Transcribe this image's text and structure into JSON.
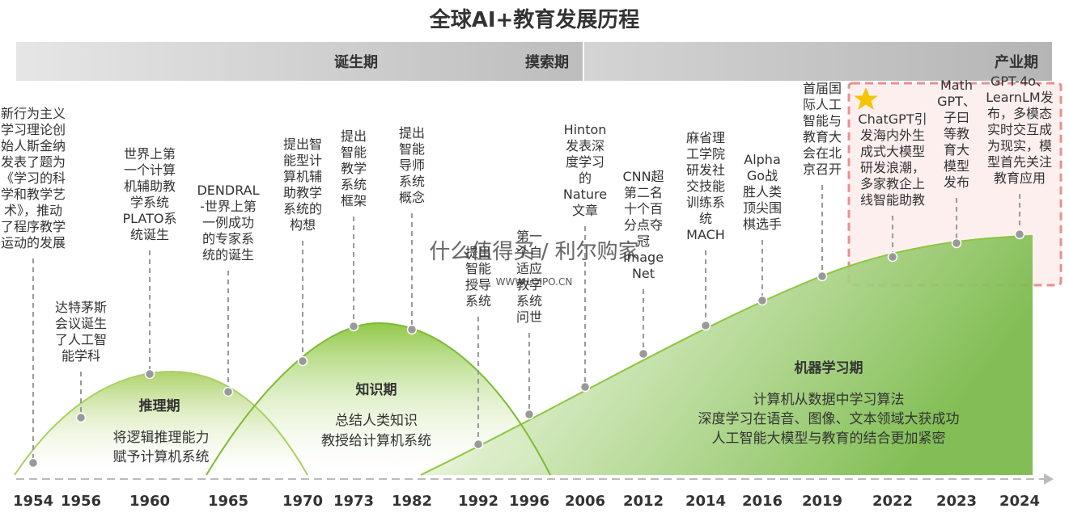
{
  "title": "全球AI+教育发展历程",
  "chart_data": {
    "type": "area",
    "title": "全球AI+教育发展历程",
    "phase_bars": [
      {
        "label": "诞生期"
      },
      {
        "label": "摸索期"
      },
      {
        "label": "产业期"
      }
    ],
    "x": [
      "1954",
      "1956",
      "1960",
      "1965",
      "1970",
      "1973",
      "1982",
      "1992",
      "1996",
      "2006",
      "2012",
      "2014",
      "2016",
      "2019",
      "2022",
      "2023",
      "2024"
    ],
    "areas": [
      {
        "name": "推理期",
        "desc": [
          "将逻辑推理能力",
          "赋予计算机系统"
        ]
      },
      {
        "name": "知识期",
        "desc": [
          "总结人类知识",
          "教授给计算机系统"
        ]
      },
      {
        "name": "机器学习期",
        "desc": [
          "计算机从数据中学习算法",
          "深度学习在语音、图像、文本领域大获成功",
          "人工智能大模型与教育的结合更加紧密"
        ]
      }
    ],
    "events": [
      {
        "year": "1954",
        "lines": [
          "新行为主义",
          "学习理论创",
          "始人斯金纳",
          "发表了题为",
          "《学习的科",
          "学和教学艺",
          "术》，推动",
          "了程序教学",
          "运动的发展"
        ]
      },
      {
        "year": "1956",
        "lines": [
          "达特茅斯",
          "会议诞生",
          "了人工智",
          "能学科"
        ]
      },
      {
        "year": "1960",
        "lines": [
          "世界上第",
          "一个计算",
          "机辅助教",
          "学系统",
          "PLATO系",
          "统诞生"
        ]
      },
      {
        "year": "1965",
        "lines": [
          "DENDRAL",
          "-世界上第",
          "一例成功",
          "的专家系",
          "统的诞生"
        ]
      },
      {
        "year": "1970",
        "lines": [
          "提出智",
          "能型计",
          "算机辅",
          "助教学",
          "系统的",
          "构想"
        ]
      },
      {
        "year": "1973",
        "lines": [
          "提出",
          "智能",
          "教学",
          "系统",
          "框架"
        ]
      },
      {
        "year": "1982",
        "lines": [
          "提出",
          "智能",
          "导师",
          "系统",
          "概念"
        ]
      },
      {
        "year": "1992",
        "lines": [
          "提出",
          "智能",
          "授导",
          "系统"
        ]
      },
      {
        "year": "1996",
        "lines": [
          "第一",
          "个自",
          "适应",
          "教学",
          "系统",
          "问世"
        ]
      },
      {
        "year": "2006",
        "lines": [
          "Hinton",
          "发表深",
          "度学习",
          "的",
          "Nature",
          "文章"
        ]
      },
      {
        "year": "2012",
        "lines": [
          "CNN超",
          "第二名",
          "十个百",
          "分点夺",
          "冠",
          "Image",
          "Net"
        ]
      },
      {
        "year": "2014",
        "lines": [
          "麻省理",
          "工学院",
          "研发社",
          "交技能",
          "训练系",
          "统",
          "MACH"
        ]
      },
      {
        "year": "2016",
        "lines": [
          "Alpha",
          "Go战",
          "胜人类",
          "顶尖围",
          "棋选手"
        ]
      },
      {
        "year": "2019",
        "lines": [
          "首届国",
          "际人工",
          "智能与",
          "教育大",
          "会在北",
          "京召开"
        ]
      },
      {
        "year": "2022",
        "lines": [
          "ChatGPT引",
          "发海内外生",
          "成式大模型",
          "研发浪潮，",
          "多家教企上",
          "线智能助教"
        ]
      },
      {
        "year": "2023",
        "lines": [
          "Math",
          "GPT、",
          "子曰",
          "等教",
          "育大",
          "模型",
          "发布"
        ]
      },
      {
        "year": "2024",
        "lines": [
          "GPT-4o、",
          "LearnLM发",
          "布，多模态",
          "实时交互成",
          "为现实，模",
          "型首先关注",
          "教育应用"
        ]
      }
    ],
    "highlight": {
      "years": [
        "2022",
        "2023",
        "2024"
      ],
      "icon": "star-icon"
    },
    "watermark": [
      "什么值得买 / 利尔购家",
      "WWW.LOIPO.CN"
    ],
    "colors": {
      "light_green": "#c9e3a0",
      "dark_green": "#6db33f",
      "bar_gray": "#c8c8c8",
      "highlight_border": "#e89090",
      "highlight_fill": "#fde9ea",
      "star": "#f6c400"
    }
  }
}
